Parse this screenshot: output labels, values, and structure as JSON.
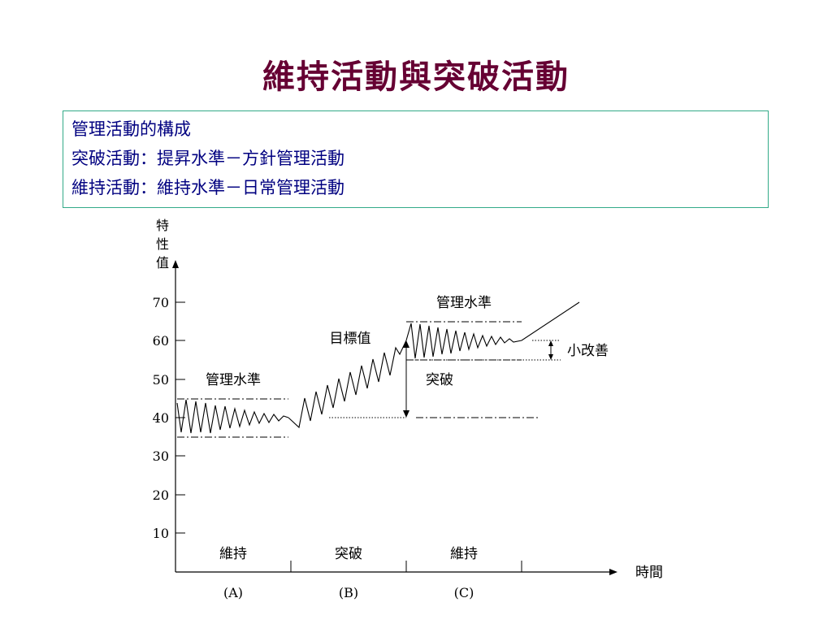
{
  "title": "維持活動與突破活動",
  "info_lines": [
    "管理活動的構成",
    "突破活動：提昇水準－方針管理活動",
    "維持活動：維持水準－日常管理活動"
  ],
  "colors": {
    "title": "#660033",
    "info_text": "#000080",
    "info_border": "#33aa88"
  },
  "diagram": {
    "y_axis_label": [
      "特",
      "性",
      "值"
    ],
    "x_axis_label": "時間",
    "y_ticks": [
      "70",
      "60",
      "50",
      "40",
      "30",
      "20",
      "10"
    ],
    "phase_labels": [
      "維持",
      "突破",
      "維持"
    ],
    "section_labels": [
      "(A)",
      "(B)",
      "(C)"
    ],
    "annotations": {
      "control_level_a": "管理水準",
      "control_level_c": "管理水準",
      "target_value": "目標值",
      "breakthrough": "突破",
      "small_improvement": "小改善"
    },
    "levels": {
      "phase_a_center": 40,
      "phase_a_upper": 45,
      "phase_a_lower": 35,
      "phase_c_center": 60,
      "phase_c_upper": 65,
      "phase_c_lower": 55,
      "small_improvement_upper": 60,
      "small_improvement_lower": 55
    }
  }
}
